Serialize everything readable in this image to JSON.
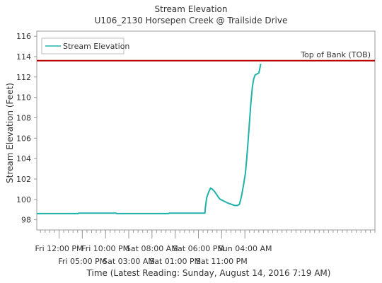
{
  "chart_data": {
    "type": "line",
    "title": "Stream Elevation",
    "subtitle": "U106_2130 Horsepen Creek @ Trailside Drive",
    "ylabel": "Stream Elevation (Feet)",
    "xlabel": "Time (Latest Reading: Sunday, August 14, 2016 7:19 AM)",
    "ylim": [
      97,
      116.5
    ],
    "y_ticks": [
      98,
      100,
      102,
      104,
      106,
      108,
      110,
      112,
      114,
      116
    ],
    "x_range_hours": [
      -16.8,
      56.0
    ],
    "x_ticks_top": [
      {
        "label": "Fri 12:00 PM",
        "at": -12
      },
      {
        "label": "Fri 10:00 PM",
        "at": -2
      },
      {
        "label": "Sat 08:00 AM",
        "at": 8
      },
      {
        "label": "Sat 06:00 PM",
        "at": 18
      },
      {
        "label": "Sun 04:00 AM",
        "at": 28
      }
    ],
    "x_ticks_bottom": [
      {
        "label": "Fri 05:00 PM",
        "at": -7
      },
      {
        "label": "Sat 03:00 AM",
        "at": 3
      },
      {
        "label": "Sat 01:00 PM",
        "at": 13
      },
      {
        "label": "Sat 11:00 PM",
        "at": 23
      }
    ],
    "legend": {
      "position": "top-left",
      "entries": [
        "Stream Elevation"
      ]
    },
    "grid": false,
    "series": [
      {
        "name": "Stream Elevation",
        "color": "#20b2aa",
        "points": [
          [
            -16.8,
            98.6
          ],
          [
            -7.9,
            98.6
          ],
          [
            -7.8,
            98.65
          ],
          [
            0.3,
            98.65
          ],
          [
            0.4,
            98.6
          ],
          [
            11.6,
            98.6
          ],
          [
            11.7,
            98.65
          ],
          [
            19.4,
            98.65
          ],
          [
            19.5,
            99.2
          ],
          [
            19.8,
            100.2
          ],
          [
            20.2,
            100.7
          ],
          [
            20.6,
            101.1
          ],
          [
            21.0,
            101.0
          ],
          [
            21.4,
            100.8
          ],
          [
            21.9,
            100.5
          ],
          [
            22.3,
            100.2
          ],
          [
            22.7,
            100.0
          ],
          [
            23.2,
            99.9
          ],
          [
            23.8,
            99.75
          ],
          [
            24.5,
            99.6
          ],
          [
            25.2,
            99.5
          ],
          [
            25.8,
            99.4
          ],
          [
            26.4,
            99.4
          ],
          [
            26.8,
            99.5
          ],
          [
            27.0,
            99.8
          ],
          [
            27.3,
            100.4
          ],
          [
            27.7,
            101.4
          ],
          [
            28.1,
            102.5
          ],
          [
            28.4,
            104.0
          ],
          [
            28.7,
            105.8
          ],
          [
            29.0,
            107.6
          ],
          [
            29.3,
            109.5
          ],
          [
            29.6,
            111.0
          ],
          [
            29.9,
            111.8
          ],
          [
            30.2,
            112.2
          ],
          [
            30.6,
            112.3
          ],
          [
            31.0,
            112.4
          ],
          [
            31.3,
            113.0
          ],
          [
            31.4,
            113.3
          ]
        ]
      }
    ],
    "reference_lines": [
      {
        "label": "Top of Bank (TOB)",
        "value": 113.6,
        "color": "#b30000"
      }
    ]
  }
}
